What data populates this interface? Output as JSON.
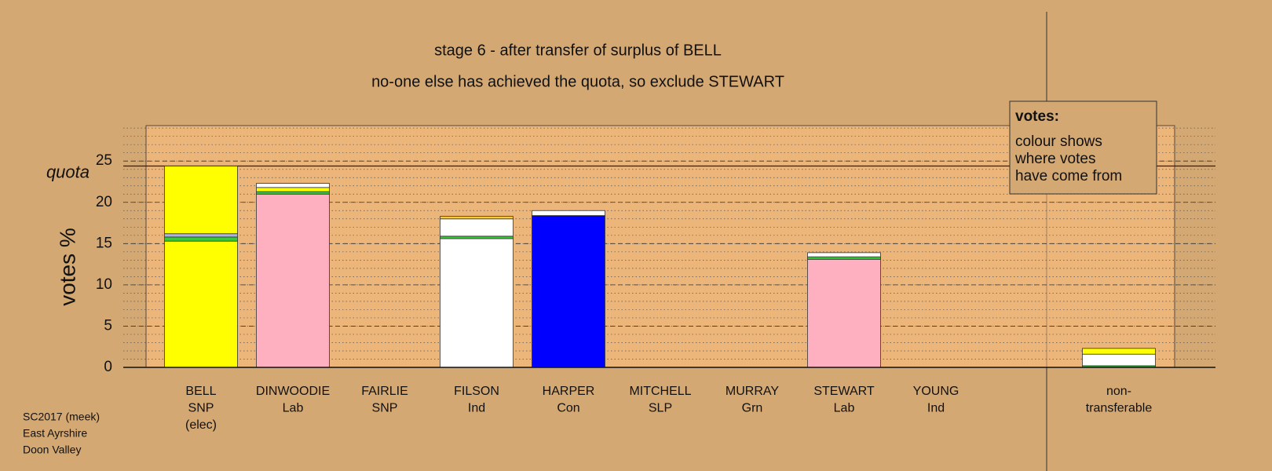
{
  "chart_data": {
    "type": "stacked-bar",
    "title": "stage 6 - after transfer of surplus of BELL",
    "subtitle": "no-one else has achieved the quota, so exclude STEWART",
    "y_label": "votes %",
    "quota_label": "quota",
    "quota": 24.4,
    "ylim": [
      0,
      29.3
    ],
    "yticks": [
      0,
      5,
      10,
      15,
      20,
      25
    ],
    "grid": true,
    "categories": [
      [
        "BELL",
        "SNP",
        "(elec)"
      ],
      [
        "DINWOODIE",
        "Lab"
      ],
      [
        "FAIRLIE",
        "SNP"
      ],
      [
        "FILSON",
        "Ind"
      ],
      [
        "HARPER",
        "Con"
      ],
      [
        "MITCHELL",
        "SLP"
      ],
      [
        "MURRAY",
        "Grn"
      ],
      [
        "STEWART",
        "Lab"
      ],
      [
        "YOUNG",
        "Ind"
      ],
      [
        "non-",
        "transferable"
      ]
    ],
    "stacks": [
      [
        {
          "color": "#ffff00",
          "value": 15.3
        },
        {
          "color": "#33cc33",
          "value": 0.5
        },
        {
          "color": "#b0b0e0",
          "value": 0.4
        },
        {
          "color": "#ffff00",
          "value": 8.2
        }
      ],
      [
        {
          "color": "#ffb0c0",
          "value": 21.0
        },
        {
          "color": "#33cc33",
          "value": 0.3
        },
        {
          "color": "#ffff00",
          "value": 0.5
        },
        {
          "color": "#ffffff",
          "value": 0.5
        }
      ],
      [],
      [
        {
          "color": "#ffffff",
          "value": 15.6
        },
        {
          "color": "#33cc33",
          "value": 0.3
        },
        {
          "color": "#ffffff",
          "value": 2.1
        },
        {
          "color": "#ffcc33",
          "value": 0.3
        }
      ],
      [
        {
          "color": "#0000ff",
          "value": 18.4
        },
        {
          "color": "#ffffff",
          "value": 0.6
        }
      ],
      [],
      [],
      [
        {
          "color": "#ffb0c0",
          "value": 13.1
        },
        {
          "color": "#33cc33",
          "value": 0.3
        },
        {
          "color": "#ffffff",
          "value": 0.5
        }
      ],
      [],
      [
        {
          "color": "#33cc33",
          "value": 0.2
        },
        {
          "color": "#ffffff",
          "value": 1.4
        },
        {
          "color": "#ffff00",
          "value": 0.7
        }
      ]
    ]
  },
  "legend_box": {
    "heading": "votes:",
    "lines": [
      "colour shows",
      "where votes",
      "have come from"
    ]
  },
  "footer": [
    "SC2017 (meek)",
    "East Ayrshire",
    "Doon Valley"
  ]
}
